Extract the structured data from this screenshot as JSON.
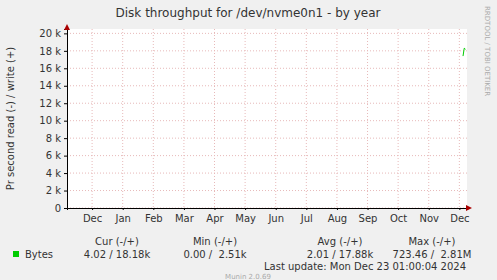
{
  "chart_data": {
    "type": "line",
    "title": "Disk throughput for /dev/nvme0n1 - by year",
    "y_label": "Pr second read (-) / write (+)",
    "watermark": "RRDTOOL / TOBI OETIKER",
    "x": [
      12.62,
      12.66,
      12.7
    ],
    "series": [
      {
        "name": "Bytes",
        "color": "#00cc00",
        "values": [
          17400,
          18300,
          18180
        ]
      }
    ],
    "xlim": [
      -0.32,
      12.75
    ],
    "xticks": [
      {
        "value": 0.5,
        "label": "Dec"
      },
      {
        "value": 1.5,
        "label": "Jan"
      },
      {
        "value": 2.5,
        "label": "Feb"
      },
      {
        "value": 3.5,
        "label": "Mar"
      },
      {
        "value": 4.5,
        "label": "Apr"
      },
      {
        "value": 5.5,
        "label": "May"
      },
      {
        "value": 6.5,
        "label": "Jun"
      },
      {
        "value": 7.5,
        "label": "Jul"
      },
      {
        "value": 8.5,
        "label": "Aug"
      },
      {
        "value": 9.5,
        "label": "Sep"
      },
      {
        "value": 10.5,
        "label": "Oct"
      },
      {
        "value": 11.5,
        "label": "Nov"
      },
      {
        "value": 12.5,
        "label": "Dec"
      }
    ],
    "ylim": [
      0,
      20500
    ],
    "yticks": [
      0,
      {
        "value": 2000,
        "label": "2 k"
      },
      {
        "value": 4000,
        "label": "4 k"
      },
      {
        "value": 6000,
        "label": "6 k"
      },
      {
        "value": 8000,
        "label": "8 k"
      },
      {
        "value": 10000,
        "label": "10 k"
      },
      {
        "value": 12000,
        "label": "12 k"
      },
      {
        "value": 14000,
        "label": "14 k"
      },
      {
        "value": 16000,
        "label": "16 k"
      },
      {
        "value": 18000,
        "label": "18 k"
      },
      {
        "value": 20000,
        "label": "20 k"
      }
    ],
    "grid": true,
    "summary": {
      "columns": [
        "Cur (-/+)",
        "Min (-/+)",
        "Avg (-/+)",
        "Max (-/+)"
      ],
      "values": [
        "4.02 / 18.18k",
        "0.00 /  2.51k",
        "2.01 / 17.88k",
        "723.46 /  2.81M"
      ]
    },
    "last_update": "Last update: Mon Dec 23 01:00:04 2024",
    "footer": "Munin 2.0.69"
  }
}
